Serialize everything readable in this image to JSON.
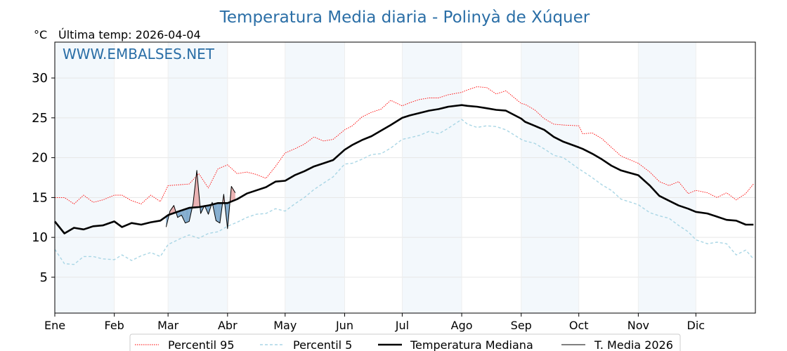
{
  "chart_data": {
    "type": "line",
    "title": "Temperatura Media diaria - Polinyà de Xúquer",
    "ylabel": "°C",
    "subtitle": "Última temp: 2026-04-04",
    "watermark": "WWW.EMBALSES.NET",
    "xlim": [
      0,
      365
    ],
    "ylim": [
      0.5,
      34.5
    ],
    "yticks": [
      5,
      10,
      15,
      20,
      25,
      30
    ],
    "month_ticks": [
      {
        "label": "Ene",
        "day": 0
      },
      {
        "label": "Feb",
        "day": 31
      },
      {
        "label": "Mar",
        "day": 59
      },
      {
        "label": "Abr",
        "day": 90
      },
      {
        "label": "May",
        "day": 120
      },
      {
        "label": "Jun",
        "day": 151
      },
      {
        "label": "Jul",
        "day": 181
      },
      {
        "label": "Ago",
        "day": 212
      },
      {
        "label": "Sep",
        "day": 243
      },
      {
        "label": "Oct",
        "day": 273
      },
      {
        "label": "Nov",
        "day": 304
      },
      {
        "label": "Dic",
        "day": 334
      }
    ],
    "shaded_months_start_days": [
      0,
      59,
      120,
      181,
      243,
      304
    ],
    "grid": true,
    "legend_position": "bottom-center",
    "series": [
      {
        "name": "Percentil 95",
        "color": "#ff0000",
        "style": "dotted",
        "x": [
          0,
          5,
          10,
          15,
          20,
          25,
          31,
          35,
          40,
          45,
          50,
          55,
          59,
          65,
          70,
          75,
          80,
          85,
          90,
          95,
          100,
          105,
          110,
          115,
          120,
          125,
          130,
          135,
          140,
          145,
          151,
          155,
          160,
          165,
          170,
          175,
          181,
          185,
          190,
          195,
          200,
          205,
          212,
          215,
          220,
          225,
          230,
          235,
          243,
          245,
          250,
          255,
          260,
          265,
          273,
          275,
          280,
          285,
          290,
          295,
          304,
          310,
          315,
          320,
          325,
          330,
          334,
          340,
          345,
          350,
          355,
          360,
          364
        ],
        "y": [
          15.0,
          15.0,
          14.2,
          15.3,
          14.4,
          14.7,
          15.3,
          15.3,
          14.6,
          14.2,
          15.3,
          14.5,
          16.5,
          16.6,
          16.7,
          18.0,
          16.2,
          18.6,
          19.1,
          18.0,
          18.2,
          17.9,
          17.4,
          18.9,
          20.6,
          21.1,
          21.7,
          22.6,
          22.1,
          22.3,
          23.5,
          24.0,
          25.1,
          25.7,
          26.1,
          27.2,
          26.5,
          26.9,
          27.3,
          27.5,
          27.5,
          27.9,
          28.2,
          28.5,
          28.9,
          28.8,
          28.0,
          28.4,
          26.8,
          26.7,
          26.0,
          24.9,
          24.2,
          24.1,
          24.0,
          23.0,
          23.1,
          22.4,
          21.3,
          20.2,
          19.3,
          18.2,
          17.0,
          16.5,
          17.0,
          15.5,
          15.9,
          15.6,
          15.0,
          15.6,
          14.7,
          15.5,
          16.7
        ]
      },
      {
        "name": "Percentil 5",
        "color": "#a9d6e5",
        "style": "dashed",
        "x": [
          0,
          5,
          10,
          15,
          20,
          25,
          31,
          35,
          40,
          45,
          50,
          55,
          59,
          65,
          70,
          75,
          80,
          85,
          90,
          95,
          100,
          105,
          110,
          115,
          120,
          125,
          130,
          135,
          140,
          145,
          151,
          155,
          160,
          165,
          170,
          175,
          181,
          185,
          190,
          195,
          200,
          205,
          212,
          215,
          220,
          225,
          230,
          235,
          243,
          245,
          250,
          255,
          260,
          265,
          273,
          275,
          280,
          285,
          290,
          295,
          304,
          310,
          315,
          320,
          325,
          330,
          334,
          340,
          345,
          350,
          355,
          360,
          364
        ],
        "y": [
          8.5,
          6.7,
          6.6,
          7.6,
          7.6,
          7.3,
          7.2,
          7.8,
          7.1,
          7.7,
          8.1,
          7.6,
          9.1,
          9.8,
          10.3,
          9.9,
          10.5,
          10.7,
          11.4,
          11.9,
          12.5,
          12.9,
          13.0,
          13.6,
          13.3,
          14.2,
          15.0,
          16.0,
          16.8,
          17.6,
          19.2,
          19.3,
          19.8,
          20.4,
          20.5,
          21.2,
          22.3,
          22.5,
          22.8,
          23.3,
          23.0,
          23.7,
          24.8,
          24.2,
          23.8,
          24.0,
          23.9,
          23.5,
          22.3,
          22.1,
          21.8,
          21.1,
          20.3,
          20.0,
          18.6,
          18.3,
          17.5,
          16.6,
          15.9,
          14.8,
          14.1,
          13.1,
          12.7,
          12.4,
          11.5,
          10.7,
          9.7,
          9.2,
          9.4,
          9.2,
          7.8,
          8.4,
          7.3
        ]
      },
      {
        "name": "Temperatura Mediana",
        "color": "#000000",
        "style": "solid-thick",
        "x": [
          0,
          5,
          10,
          15,
          20,
          25,
          31,
          35,
          40,
          45,
          50,
          55,
          59,
          65,
          70,
          75,
          80,
          85,
          90,
          95,
          100,
          105,
          110,
          115,
          120,
          125,
          130,
          135,
          140,
          145,
          151,
          155,
          160,
          165,
          170,
          175,
          181,
          185,
          190,
          195,
          200,
          205,
          212,
          215,
          220,
          225,
          230,
          235,
          243,
          245,
          250,
          255,
          260,
          265,
          273,
          275,
          280,
          285,
          290,
          295,
          304,
          310,
          315,
          320,
          325,
          330,
          334,
          340,
          345,
          350,
          355,
          360,
          364
        ],
        "y": [
          12.0,
          10.5,
          11.2,
          11.0,
          11.4,
          11.5,
          12.0,
          11.3,
          11.8,
          11.6,
          11.9,
          12.1,
          12.8,
          13.3,
          13.7,
          13.8,
          14.0,
          14.3,
          14.3,
          14.8,
          15.5,
          15.9,
          16.3,
          17.0,
          17.1,
          17.8,
          18.3,
          18.9,
          19.3,
          19.7,
          21.0,
          21.6,
          22.2,
          22.7,
          23.4,
          24.1,
          25.0,
          25.3,
          25.6,
          25.9,
          26.1,
          26.4,
          26.6,
          26.5,
          26.4,
          26.2,
          26.0,
          25.9,
          24.9,
          24.5,
          24.0,
          23.5,
          22.6,
          22.0,
          21.3,
          21.1,
          20.5,
          19.8,
          19.0,
          18.4,
          17.8,
          16.5,
          15.2,
          14.6,
          14.0,
          13.6,
          13.2,
          13.0,
          12.6,
          12.2,
          12.1,
          11.6,
          11.6
        ]
      },
      {
        "name": "T. Media 2026",
        "color": "#000000",
        "style": "solid-thin",
        "x": [
          58,
          60,
          62,
          64,
          66,
          68,
          70,
          72,
          74,
          76,
          78,
          80,
          82,
          84,
          86,
          88,
          90,
          92,
          94
        ],
        "y": [
          11.3,
          13.3,
          14.0,
          12.5,
          12.8,
          11.8,
          12.0,
          14.2,
          18.4,
          13.0,
          14.0,
          12.9,
          14.4,
          12.1,
          11.8,
          15.4,
          11.1,
          16.4,
          15.6
        ]
      }
    ]
  }
}
